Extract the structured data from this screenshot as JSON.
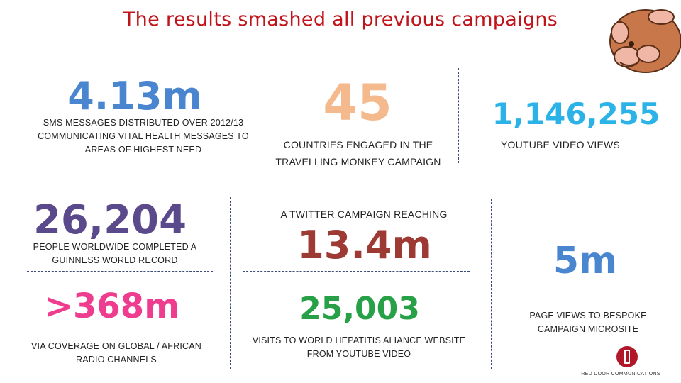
{
  "title": "The results smashed all previous campaigns",
  "stats": {
    "sms": {
      "value": "4.13m",
      "caption": "SMS MESSAGES DISTRIBUTED OVER 2012/13 COMMUNICATING VITAL HEALTH MESSAGES TO AREAS OF HIGHEST NEED",
      "color": "#4a86d0"
    },
    "countries": {
      "value": "45",
      "caption": "COUNTRIES ENGAGED IN THE TRAVELLING MONKEY CAMPAIGN",
      "color": "#f4b98c"
    },
    "youtube": {
      "value": "1,146,255",
      "caption": "YOUTUBE VIDEO VIEWS",
      "color": "#2bb3e8"
    },
    "guinness": {
      "value": "26,204",
      "caption": "PEOPLE WORLDWIDE COMPLETED A GUINNESS WORLD RECORD",
      "color": "#5b4a8b"
    },
    "twitter": {
      "intro": "A TWITTER CAMPAIGN REACHING",
      "value": "13.4m",
      "color": "#9e3a34"
    },
    "microsite": {
      "value": "5m",
      "caption": "PAGE VIEWS TO BESPOKE CAMPAIGN MICROSITE",
      "color": "#4a86d0"
    },
    "radio": {
      "value": ">368m",
      "caption": "VIA COVERAGE ON GLOBAL / AFRICAN RADIO CHANNELS",
      "color": "#ee3c8e"
    },
    "hepatitis": {
      "value": "25,003",
      "caption": "VISITS TO WORLD HEPATITIS ALIANCE WEBSITE FROM YOUTUBE VIDEO",
      "color": "#27a047"
    }
  },
  "branding": {
    "company": "RED DOOR COMMUNICATIONS",
    "logo_color": "#b0182a"
  },
  "mascot_icon": "monkey-icon"
}
